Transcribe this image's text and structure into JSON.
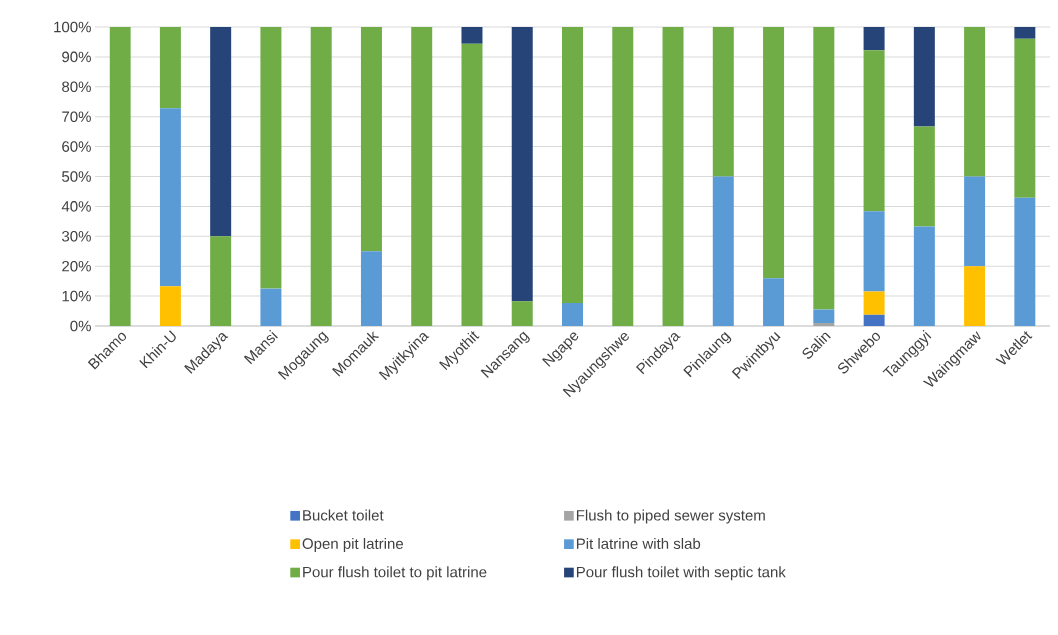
{
  "chart_data": {
    "type": "bar",
    "stacked": true,
    "categories": [
      "Bhamo",
      "Khin-U",
      "Madaya",
      "Mansi",
      "Mogaung",
      "Momauk",
      "Myitkyina",
      "Myothit",
      "Nansang",
      "Ngape",
      "Nyaungshwe",
      "Pindaya",
      "Pinlaung",
      "Pwintbyu",
      "Salin",
      "Shwebo",
      "Taunggyi",
      "Waingmaw",
      "Wetlet"
    ],
    "series": [
      {
        "name": "Bucket toilet",
        "color": "#4472c4",
        "values": [
          0,
          0,
          0,
          0,
          0,
          0,
          0,
          0,
          0,
          0,
          0,
          0,
          0,
          0,
          0,
          3.8,
          0,
          0,
          0
        ]
      },
      {
        "name": "Flush to piped sewer system",
        "color": "#a5a5a5",
        "values": [
          0,
          0,
          0,
          0,
          0,
          0,
          0,
          0,
          0,
          0,
          0,
          0,
          0,
          0,
          1,
          0,
          0,
          0,
          0
        ]
      },
      {
        "name": "Open pit latrine",
        "color": "#ffc000",
        "values": [
          0,
          13.3,
          0,
          0,
          0,
          0,
          0,
          0,
          0,
          0,
          0,
          0,
          0,
          0,
          0,
          7.7,
          0,
          20,
          0
        ]
      },
      {
        "name": "Pit latrine with slab",
        "color": "#5b9bd5",
        "values": [
          0,
          59.5,
          0,
          12.5,
          0,
          25,
          0,
          0,
          0,
          7.7,
          0,
          0,
          50,
          16,
          4.5,
          26.9,
          33.3,
          30,
          42.9
        ]
      },
      {
        "name": "Pour flush toilet to pit latrine",
        "color": "#70ad47",
        "values": [
          100,
          27.2,
          30,
          87.5,
          100,
          75,
          100,
          94.4,
          8.3,
          92.3,
          100,
          100,
          50,
          84,
          94.5,
          53.8,
          33.4,
          50,
          53.2
        ]
      },
      {
        "name": "Pour flush toilet with septic tank",
        "color": "#264478",
        "values": [
          0,
          0,
          70,
          0,
          0,
          0,
          0,
          5.6,
          91.7,
          0,
          0,
          0,
          0,
          0,
          0,
          7.8,
          33.3,
          0,
          3.9
        ]
      }
    ],
    "ylim": [
      0,
      100
    ],
    "yticks": [
      {
        "value": 0,
        "label": "0%"
      },
      {
        "value": 10,
        "label": "10%"
      },
      {
        "value": 20,
        "label": "20%"
      },
      {
        "value": 30,
        "label": "30%"
      },
      {
        "value": 40,
        "label": "40%"
      },
      {
        "value": 50,
        "label": "50%"
      },
      {
        "value": 60,
        "label": "60%"
      },
      {
        "value": 70,
        "label": "70%"
      },
      {
        "value": 80,
        "label": "80%"
      },
      {
        "value": 90,
        "label": "90%"
      },
      {
        "value": 100,
        "label": "100%"
      }
    ],
    "grid": "y",
    "legend": "bottom"
  }
}
